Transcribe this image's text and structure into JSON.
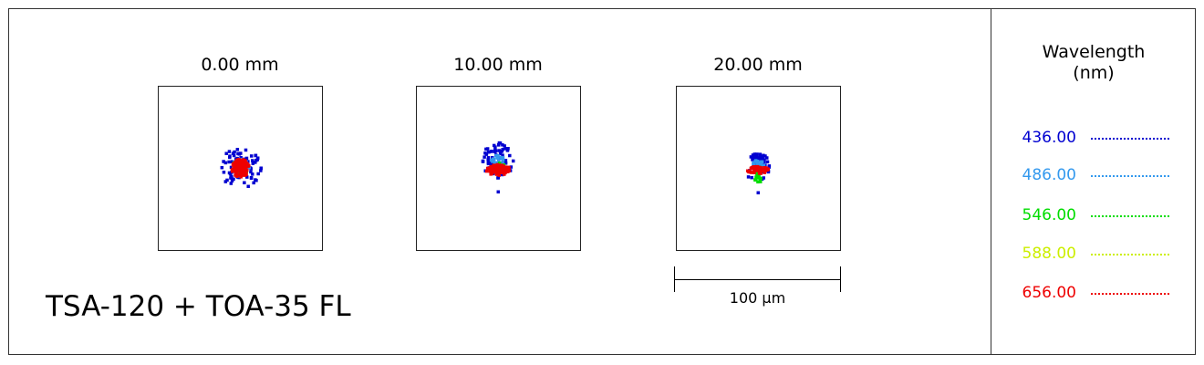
{
  "fields": [
    {
      "label": "0.00 mm"
    },
    {
      "label": "10.00 mm"
    },
    {
      "label": "20.00 mm"
    }
  ],
  "title": "TSA-120 + TOA-35 FL",
  "scale_bar": {
    "label": "100 µm"
  },
  "legend": {
    "title_line1": "Wavelength",
    "title_line2": "(nm)",
    "items": [
      {
        "label": "436.00",
        "color": "#0000d0"
      },
      {
        "label": "486.00",
        "color": "#3399ee"
      },
      {
        "label": "546.00",
        "color": "#00dd00"
      },
      {
        "label": "588.00",
        "color": "#ccee00"
      },
      {
        "label": "656.00",
        "color": "#ee0000"
      }
    ]
  }
}
